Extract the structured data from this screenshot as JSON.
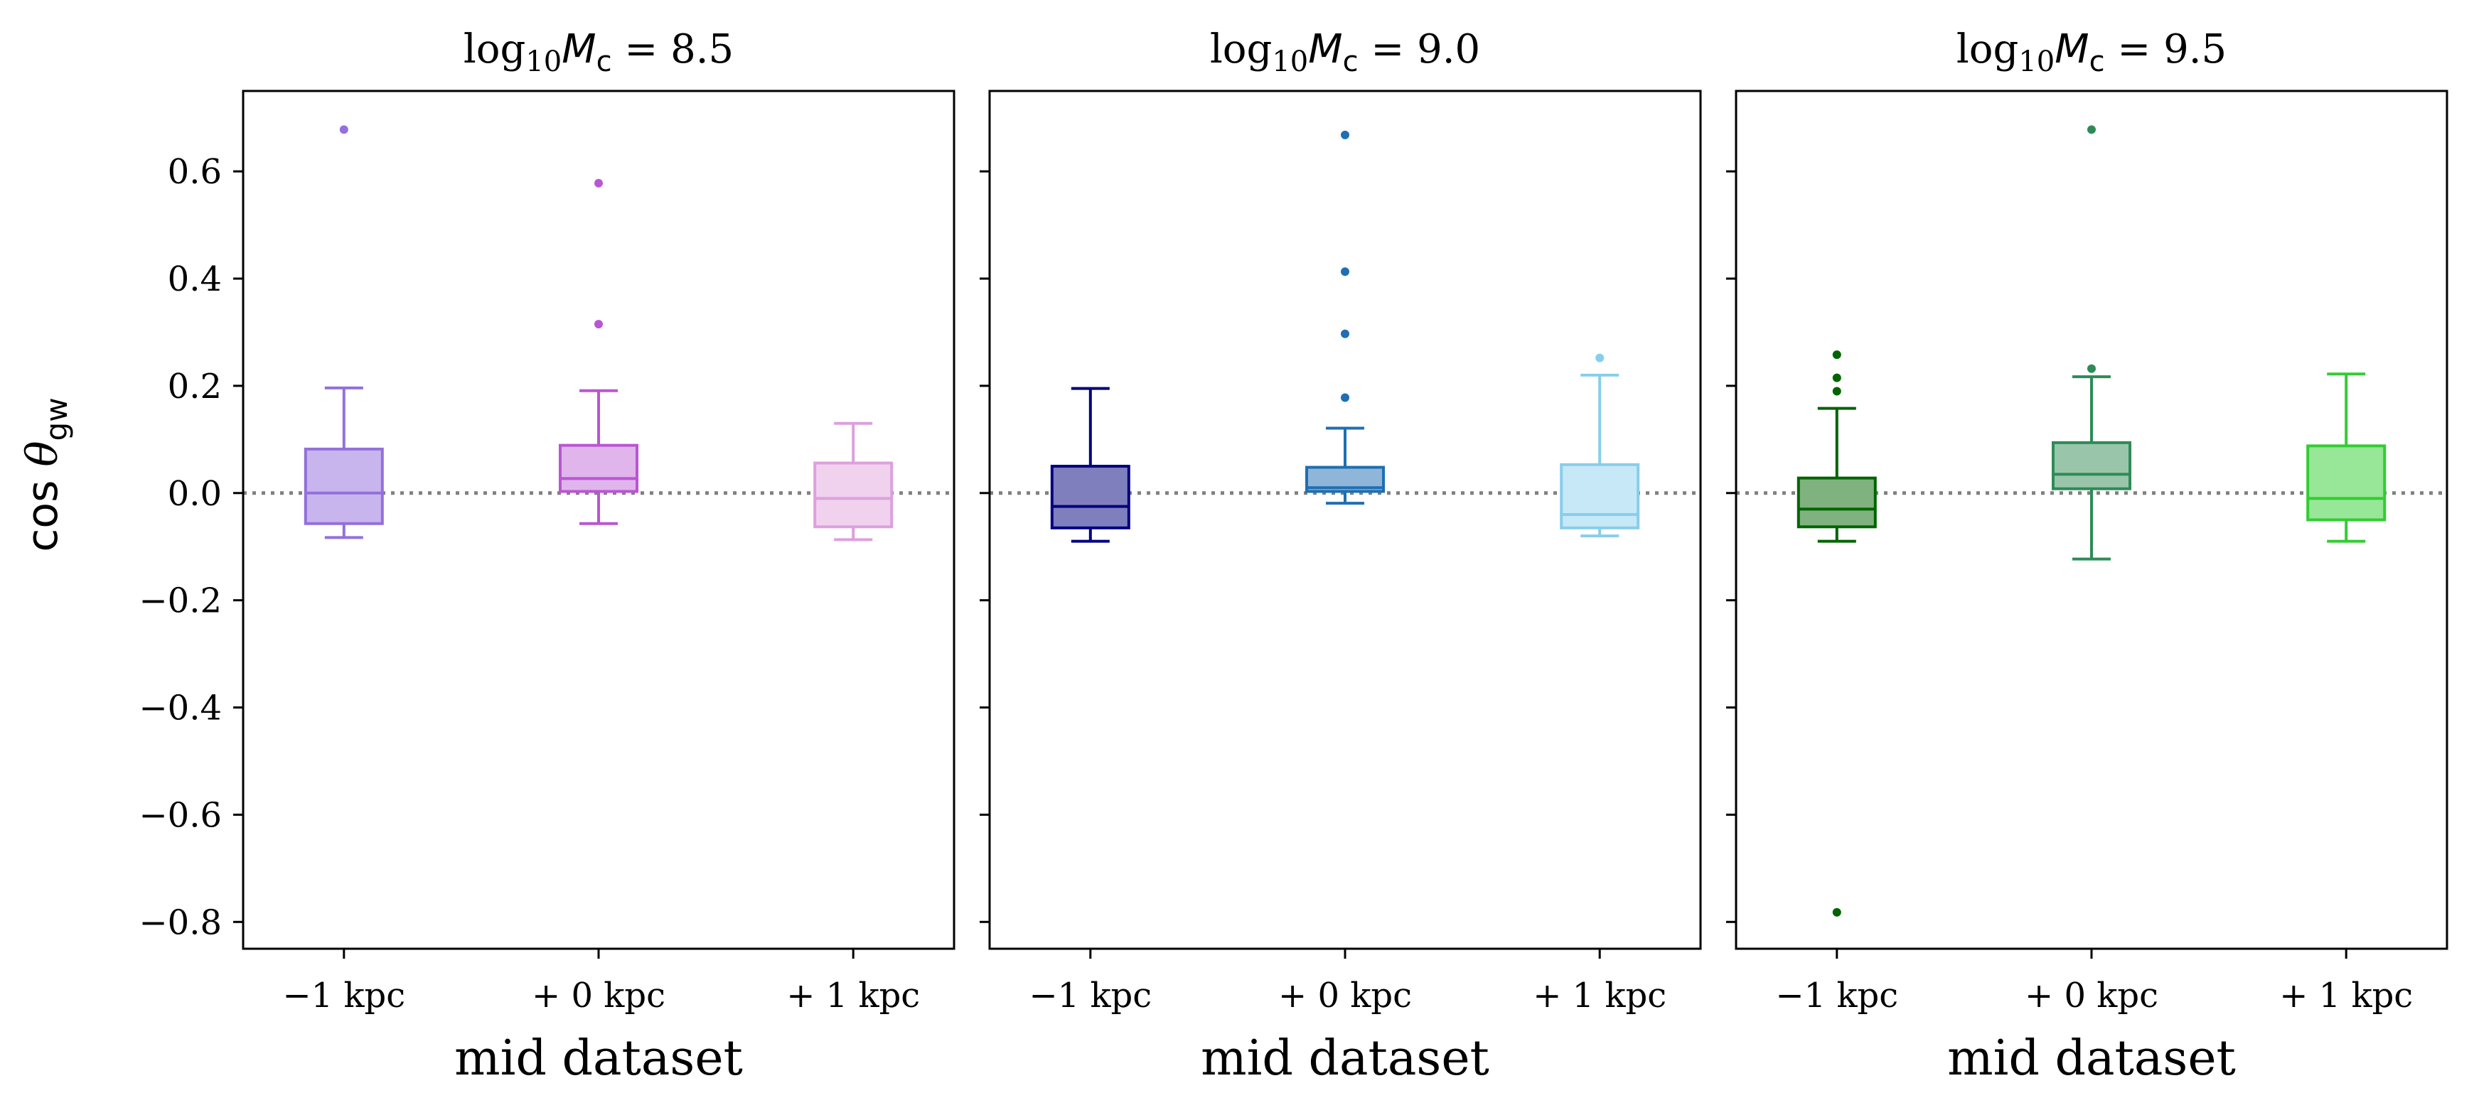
{
  "chart_data": {
    "type": "box",
    "shared_y": true,
    "ylabel": "cos θ_gw",
    "ylim": [
      -0.85,
      0.75
    ],
    "yticks": [
      0.6,
      0.4,
      0.2,
      0.0,
      -0.2,
      -0.4,
      -0.6,
      -0.8
    ],
    "ytick_labels": [
      "0.6",
      "0.4",
      "0.2",
      "0.0",
      "−0.2",
      "−0.4",
      "−0.6",
      "−0.8"
    ],
    "reference_line": {
      "y": 0.0,
      "style": "dotted",
      "color": "#808080"
    },
    "categories": [
      "−1 kpc",
      "+ 0 kpc",
      "+ 1 kpc"
    ],
    "panels": [
      {
        "title_prefix": "log",
        "title_sub": "10",
        "title_var": "M",
        "title_var_sub": "c",
        "title_value": " = 8.5",
        "xlabel": "mid dataset",
        "boxes": [
          {
            "q1": -0.057,
            "median": 0.0,
            "q3": 0.082,
            "whislo": -0.083,
            "whishi": 0.196,
            "fliers": [
              0.678
            ],
            "edge": "#9370db",
            "fill": "#c8b5ee"
          },
          {
            "q1": 0.003,
            "median": 0.027,
            "q3": 0.089,
            "whislo": -0.057,
            "whishi": 0.191,
            "fliers": [
              0.578,
              0.315
            ],
            "edge": "#ba55d3",
            "fill": "#e0b5ec"
          },
          {
            "q1": -0.063,
            "median": -0.01,
            "q3": 0.056,
            "whislo": -0.087,
            "whishi": 0.13,
            "fliers": [],
            "edge": "#dda0dd",
            "fill": "#f0d2ef"
          }
        ]
      },
      {
        "title_prefix": "log",
        "title_sub": "10",
        "title_var": "M",
        "title_var_sub": "c",
        "title_value": " = 9.0",
        "xlabel": "mid dataset",
        "boxes": [
          {
            "q1": -0.065,
            "median": -0.025,
            "q3": 0.05,
            "whislo": -0.09,
            "whishi": 0.195,
            "fliers": [],
            "edge": "#000080",
            "fill": "#7f7fbd"
          },
          {
            "q1": 0.003,
            "median": 0.01,
            "q3": 0.048,
            "whislo": -0.019,
            "whishi": 0.121,
            "fliers": [
              0.668,
              0.413,
              0.297,
              0.178
            ],
            "edge": "#1f6fb2",
            "fill": "#8fb6d8"
          },
          {
            "q1": -0.065,
            "median": -0.04,
            "q3": 0.053,
            "whislo": -0.08,
            "whishi": 0.22,
            "fliers": [
              0.252
            ],
            "edge": "#87ceeb",
            "fill": "#c7e8f6"
          }
        ]
      },
      {
        "title_prefix": "log",
        "title_sub": "10",
        "title_var": "M",
        "title_var_sub": "c",
        "title_value": " = 9.5",
        "xlabel": "mid dataset",
        "boxes": [
          {
            "q1": -0.063,
            "median": -0.03,
            "q3": 0.028,
            "whislo": -0.09,
            "whishi": 0.158,
            "fliers": [
              0.258,
              0.215,
              0.19,
              -0.782
            ],
            "edge": "#006400",
            "fill": "#7fb27f"
          },
          {
            "q1": 0.008,
            "median": 0.035,
            "q3": 0.094,
            "whislo": -0.123,
            "whishi": 0.217,
            "fliers": [
              0.678,
              0.232
            ],
            "edge": "#2e8b57",
            "fill": "#99c6ab"
          },
          {
            "q1": -0.05,
            "median": -0.01,
            "q3": 0.088,
            "whislo": -0.09,
            "whishi": 0.222,
            "fliers": [],
            "edge": "#32cd32",
            "fill": "#98e698"
          }
        ]
      }
    ]
  }
}
